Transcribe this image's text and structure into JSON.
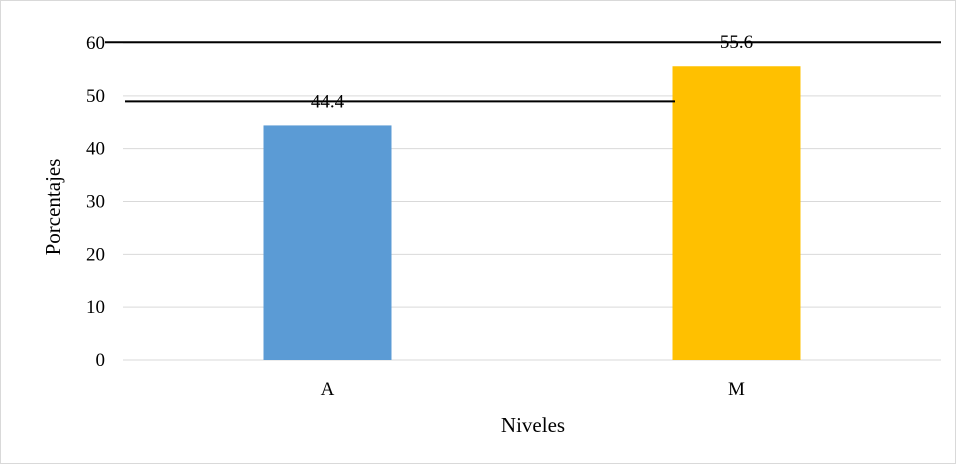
{
  "chart_data": {
    "type": "bar",
    "categories": [
      "A",
      "M"
    ],
    "values": [
      44.4,
      55.6
    ],
    "colors": [
      "#5b9bd5",
      "#ffc000"
    ],
    "data_labels": [
      "44.4",
      "55.6"
    ],
    "xlabel": "Niveles",
    "ylabel": "Porcentajes",
    "ylim": [
      0,
      60
    ],
    "yticks": [
      "0",
      "10",
      "20",
      "30",
      "40",
      "50",
      "60"
    ],
    "grid": true,
    "gridline_color": "#d9d9d9",
    "legend": "none"
  }
}
